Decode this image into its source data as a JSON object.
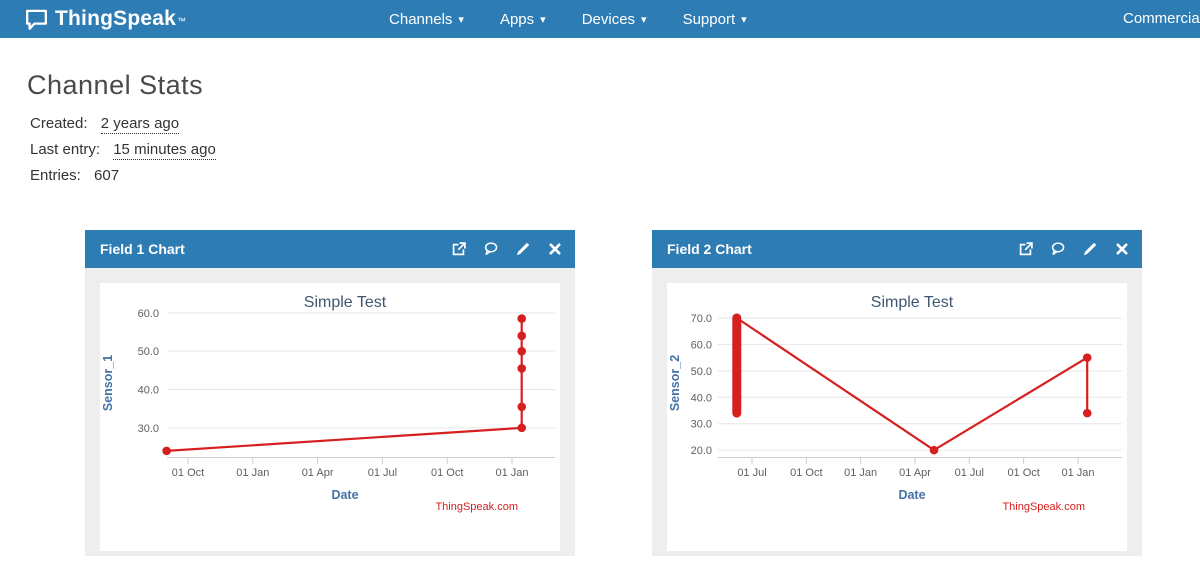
{
  "navbar": {
    "brand": "ThingSpeak",
    "brand_tm": "™",
    "items": [
      {
        "label": "Channels"
      },
      {
        "label": "Apps"
      },
      {
        "label": "Devices"
      },
      {
        "label": "Support"
      }
    ],
    "right_item": "Commercial Use"
  },
  "page": {
    "title": "Channel Stats",
    "stats": [
      {
        "label": "Created:",
        "value": "2 years ago"
      },
      {
        "label": "Last entry:",
        "value": "15 minutes ago"
      },
      {
        "label": "Entries:",
        "value": "607"
      }
    ]
  },
  "panels": [
    {
      "title": "Field 1 Chart"
    },
    {
      "title": "Field 2 Chart"
    }
  ],
  "panel_icons": [
    "external-link",
    "comment",
    "edit",
    "close"
  ],
  "colors": {
    "navbar_bg": "#2e7cb4",
    "panel_header_bg": "#2e7cb4",
    "series": "#d62020",
    "chart_title": "#3e576f",
    "axis_title": "#4572a7",
    "tick_label": "#606060",
    "grid": "#e6e6e6",
    "axis_line": "#cccccc",
    "panel_body": "#eeeeee",
    "credits": "#d62020"
  },
  "chart_data": [
    {
      "type": "line",
      "title": "Simple Test",
      "xlabel": "Date",
      "ylabel": "Sensor_1",
      "credits": "ThingSpeak.com",
      "x_tick_labels": [
        "01 Oct",
        "01 Jan",
        "01 Apr",
        "01 Jul",
        "01 Oct",
        "01 Jan"
      ],
      "y_ticks": [
        30,
        40,
        50,
        60
      ],
      "ylim": [
        22.4,
        61.0
      ],
      "grid": true,
      "legend": "none",
      "points": [
        [
          -0.33,
          24
        ],
        [
          5.15,
          30
        ],
        [
          5.15,
          35.5
        ],
        [
          5.15,
          45.5
        ],
        [
          5.15,
          50
        ],
        [
          5.15,
          54
        ],
        [
          5.15,
          58.5
        ]
      ]
    },
    {
      "type": "line",
      "title": "Simple Test",
      "xlabel": "Date",
      "ylabel": "Sensor_2",
      "credits": "ThingSpeak.com",
      "x_tick_labels": [
        "01 Jul",
        "01 Oct",
        "01 Jan",
        "01 Apr",
        "01 Jul",
        "01 Oct",
        "01 Jan"
      ],
      "y_ticks": [
        20,
        30,
        40,
        50,
        60,
        70
      ],
      "ylim": [
        17.4,
        73.4
      ],
      "grid": true,
      "legend": "none",
      "points": [
        [
          -0.28,
          70
        ],
        [
          3.35,
          20
        ],
        [
          6.17,
          55
        ],
        [
          6.17,
          34
        ]
      ],
      "burst": {
        "x": -0.28,
        "y_min": 34,
        "y_max": 70
      }
    }
  ]
}
